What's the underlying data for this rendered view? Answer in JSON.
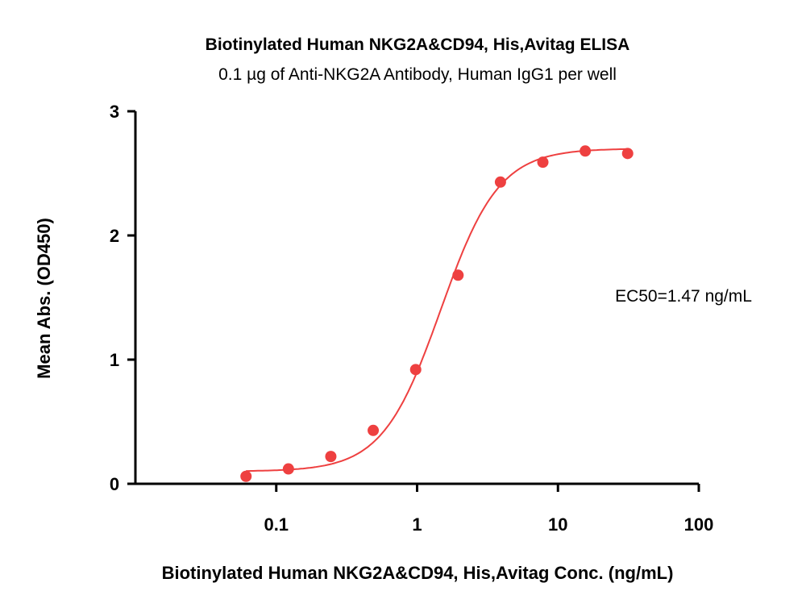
{
  "chart_data": {
    "type": "scatter",
    "title": "Biotinylated Human NKG2A&CD94, His,Avitag ELISA",
    "subtitle": "0.1 µg of Anti-NKG2A Antibody, Human IgG1 per well",
    "xlabel": "Biotinylated Human NKG2A&CD94, His,Avitag Conc. (ng/mL)",
    "ylabel": "Mean Abs. (OD450)",
    "x_scale": "log",
    "xlim": [
      0.01,
      100
    ],
    "ylim": [
      0,
      3
    ],
    "x_ticks": [
      0.1,
      1,
      10,
      100
    ],
    "x_tick_labels": [
      "0.1",
      "1",
      "10",
      "100"
    ],
    "y_ticks": [
      0,
      1,
      2,
      3
    ],
    "y_tick_labels": [
      "0",
      "1",
      "2",
      "3"
    ],
    "series": [
      {
        "x": [
          0.061,
          0.122,
          0.244,
          0.488,
          0.977,
          1.953,
          3.906,
          7.8125,
          15.625,
          31.25
        ],
        "y": [
          0.06,
          0.12,
          0.22,
          0.43,
          0.92,
          1.68,
          2.43,
          2.59,
          2.68,
          2.66
        ],
        "color": "#ee4040"
      }
    ],
    "fit": {
      "model": "4PL",
      "bottom": 0.1,
      "top": 2.7,
      "ec50": 1.47,
      "hill": 2.1,
      "x_range": [
        0.061,
        31.25
      ],
      "color": "#ee4040"
    },
    "annotation": "EC50=1.47 ng/mL",
    "grid": false,
    "legend": "none"
  }
}
